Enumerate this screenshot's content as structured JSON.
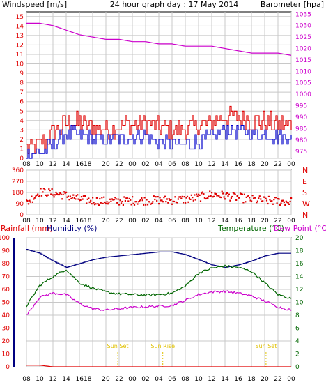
{
  "header": {
    "left_label": "Windspeed [m/s]",
    "title": "24 hour graph day : 17 May 2014",
    "right_label": "Barometer [hpa]"
  },
  "colors": {
    "wind_gust": "#e00000",
    "wind_avg": "#0000cc",
    "barometer": "#cc00cc",
    "direction": "#e00000",
    "humidity": "#000080",
    "temperature": "#006600",
    "dewpoint": "#cc00cc",
    "rain": "#e00000",
    "sun": "#e0c000",
    "grid": "#c8c8c8",
    "frame": "#000000"
  },
  "x_ticks": [
    "08",
    "10",
    "12",
    "14",
    "1618",
    "",
    "20",
    "22",
    "00",
    "02",
    "04",
    "06",
    "08",
    "10",
    "12",
    "14",
    "16",
    "18",
    "20",
    "22",
    "00"
  ],
  "chart_data": [
    {
      "type": "line",
      "title": "24 hour graph day : 17 May 2014",
      "ylabel": "Windspeed [m/s]",
      "y2label": "Barometer [hpa]",
      "ylim": [
        0,
        15.5
      ],
      "y2lim": [
        972,
        1036
      ],
      "y_ticks": [
        "0",
        "1",
        "2",
        "3",
        "4",
        "5",
        "6",
        "7",
        "8",
        "9",
        "10",
        "11",
        "12",
        "13",
        "14",
        "15"
      ],
      "y2_ticks": [
        "975",
        "980",
        "985",
        "990",
        "995",
        "1000",
        "1005",
        "1010",
        "1015",
        "1020",
        "1025",
        "1030",
        "1035"
      ],
      "x": [
        "08",
        "10",
        "12",
        "14",
        "16",
        "18",
        "20",
        "22",
        "00",
        "02",
        "04",
        "06",
        "08",
        "10",
        "12",
        "14",
        "16",
        "18",
        "20",
        "22",
        "00"
      ],
      "series": [
        {
          "values": [
            1.0,
            1.5,
            2.6,
            3.8,
            3.7,
            3.3,
            3.2,
            3.4,
            3.6,
            3.8,
            3.2,
            3.0,
            3.0,
            3.4,
            3.9,
            4.5,
            4.3,
            4.0,
            3.8,
            3.6,
            3.6
          ]
        },
        {
          "values": [
            0.4,
            0.6,
            1.5,
            2.6,
            2.4,
            2.0,
            2.0,
            2.1,
            2.3,
            2.4,
            1.7,
            1.5,
            1.4,
            1.8,
            2.3,
            3.0,
            2.9,
            2.6,
            2.5,
            2.3,
            2.4
          ]
        },
        {
          "values": [
            1031,
            1031,
            1030,
            1028,
            1026,
            1025,
            1024,
            1024,
            1023,
            1023,
            1022,
            1022,
            1021,
            1021,
            1021,
            1020,
            1019,
            1018,
            1018,
            1018,
            1017
          ]
        }
      ]
    },
    {
      "type": "scatter",
      "ylim": [
        0,
        360
      ],
      "y_ticks": [
        "0",
        "90",
        "180",
        "270",
        "360"
      ],
      "y2_ticks": [
        "N",
        "W",
        "S",
        "E",
        "N"
      ],
      "x": [
        "08",
        "10",
        "12",
        "14",
        "16",
        "18",
        "20",
        "22",
        "00",
        "02",
        "04",
        "06",
        "08",
        "10",
        "12",
        "14",
        "16",
        "18",
        "20",
        "22",
        "00"
      ],
      "series": [
        {
          "values": [
            95,
            185,
            175,
            155,
            125,
            115,
            110,
            110,
            115,
            115,
            120,
            120,
            125,
            140,
            165,
            155,
            140,
            125,
            115,
            110,
            105
          ]
        }
      ]
    },
    {
      "type": "line",
      "ylabel": "Rainfall (mm)",
      "ylabel2": "Humidity (%)",
      "y2label": "Temperature (°C)",
      "y2label2": "Dew Point (°C)",
      "ylim": [
        0,
        100
      ],
      "y2lim": [
        0,
        20
      ],
      "y_ticks": [
        "0",
        "10",
        "20",
        "30",
        "40",
        "50",
        "60",
        "70",
        "80",
        "90",
        "100"
      ],
      "y2_ticks": [
        "0",
        "2",
        "4",
        "6",
        "8",
        "10",
        "12",
        "14",
        "16",
        "18",
        "20"
      ],
      "x": [
        "08",
        "10",
        "12",
        "14",
        "16",
        "18",
        "20",
        "22",
        "00",
        "02",
        "04",
        "06",
        "08",
        "10",
        "12",
        "14",
        "16",
        "18",
        "20",
        "22",
        "00"
      ],
      "annotations": [
        "Sun Set",
        "Sun Rise",
        "Sun Set"
      ],
      "series": [
        {
          "values": [
            91,
            88,
            82,
            77,
            80,
            83,
            85,
            86,
            87,
            88,
            89,
            89,
            87,
            83,
            79,
            77,
            79,
            82,
            86,
            88,
            88
          ]
        },
        {
          "values": [
            9.4,
            12.6,
            14.0,
            15.1,
            13.0,
            12.2,
            11.6,
            11.3,
            11.2,
            11.1,
            11.2,
            11.4,
            12.5,
            14.5,
            15.3,
            15.6,
            15.4,
            14.8,
            13.0,
            11.2,
            10.6
          ]
        },
        {
          "values": [
            8.0,
            10.8,
            11.4,
            11.2,
            9.8,
            9.0,
            8.8,
            9.0,
            9.2,
            9.3,
            9.4,
            9.5,
            10.3,
            11.2,
            11.6,
            11.7,
            11.4,
            11.0,
            10.2,
            9.3,
            8.8
          ]
        },
        {
          "values": [
            0.6,
            0.6,
            0,
            0,
            0,
            0,
            0,
            0,
            0,
            0,
            0,
            0,
            0,
            0,
            0,
            0,
            0,
            0,
            0,
            0,
            0
          ]
        }
      ]
    }
  ]
}
